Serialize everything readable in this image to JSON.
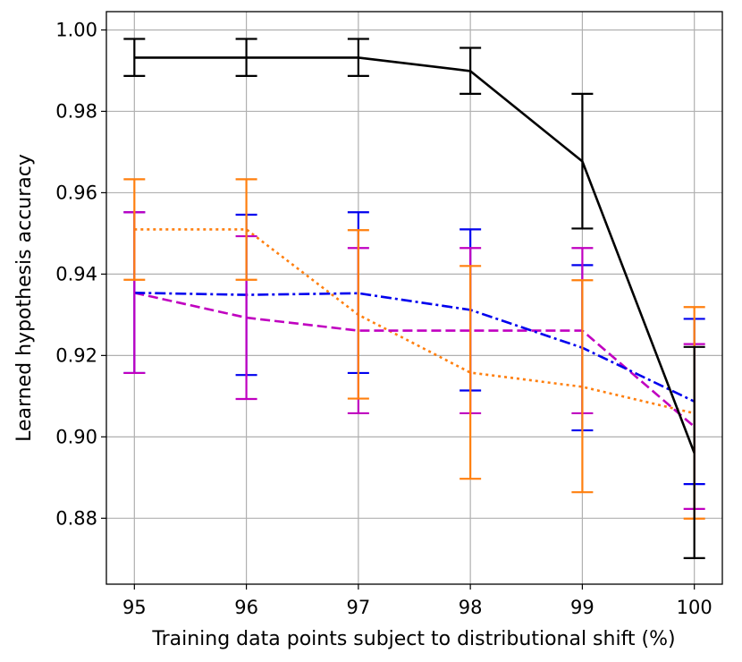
{
  "chart_data": {
    "type": "line",
    "title": "",
    "xlabel": "Training data points subject to distributional shift (%)",
    "ylabel": "Learned hypothesis accuracy",
    "x": [
      95,
      96,
      97,
      98,
      99,
      100
    ],
    "xlim": [
      94.75,
      100.25
    ],
    "ylim": [
      0.8638,
      1.0045
    ],
    "xticks": [
      95,
      96,
      97,
      98,
      99,
      100
    ],
    "yticks": [
      0.88,
      0.9,
      0.92,
      0.94,
      0.96,
      0.98,
      1.0
    ],
    "ytick_labels": [
      "0.88",
      "0.90",
      "0.92",
      "0.94",
      "0.96",
      "0.98",
      "1.00"
    ],
    "grid": true,
    "series": [
      {
        "style": "solid",
        "color": "#000000",
        "values": [
          0.9932,
          0.9932,
          0.9932,
          0.9899,
          0.9677,
          0.896
        ],
        "err_low": [
          0.9887,
          0.9887,
          0.9887,
          0.9843,
          0.9512,
          0.8702
        ],
        "err_high": [
          0.9978,
          0.9978,
          0.9978,
          0.9956,
          0.9843,
          0.9221
        ]
      },
      {
        "style": "dashdot",
        "color": "#0000ee",
        "values": [
          0.9354,
          0.9349,
          0.9353,
          0.9312,
          0.9219,
          0.9087
        ],
        "err_low": [
          0.9157,
          0.9152,
          0.9157,
          0.9114,
          0.9016,
          0.8884
        ],
        "err_high": [
          0.9552,
          0.9546,
          0.9552,
          0.951,
          0.9422,
          0.929
        ]
      },
      {
        "style": "dashed",
        "color": "#c000c0",
        "values": [
          0.9354,
          0.9293,
          0.9261,
          0.9261,
          0.9261,
          0.9025
        ],
        "err_low": [
          0.9157,
          0.9093,
          0.9058,
          0.9058,
          0.9058,
          0.8823
        ],
        "err_high": [
          0.9552,
          0.9493,
          0.9464,
          0.9464,
          0.9464,
          0.9228
        ]
      },
      {
        "style": "dotted",
        "color": "#ff7f0e",
        "values": [
          0.951,
          0.951,
          0.93,
          0.9158,
          0.9123,
          0.9058
        ],
        "err_low": [
          0.9386,
          0.9386,
          0.9094,
          0.8897,
          0.8864,
          0.8799
        ],
        "err_high": [
          0.9633,
          0.9633,
          0.9508,
          0.942,
          0.9385,
          0.9319
        ]
      }
    ]
  }
}
